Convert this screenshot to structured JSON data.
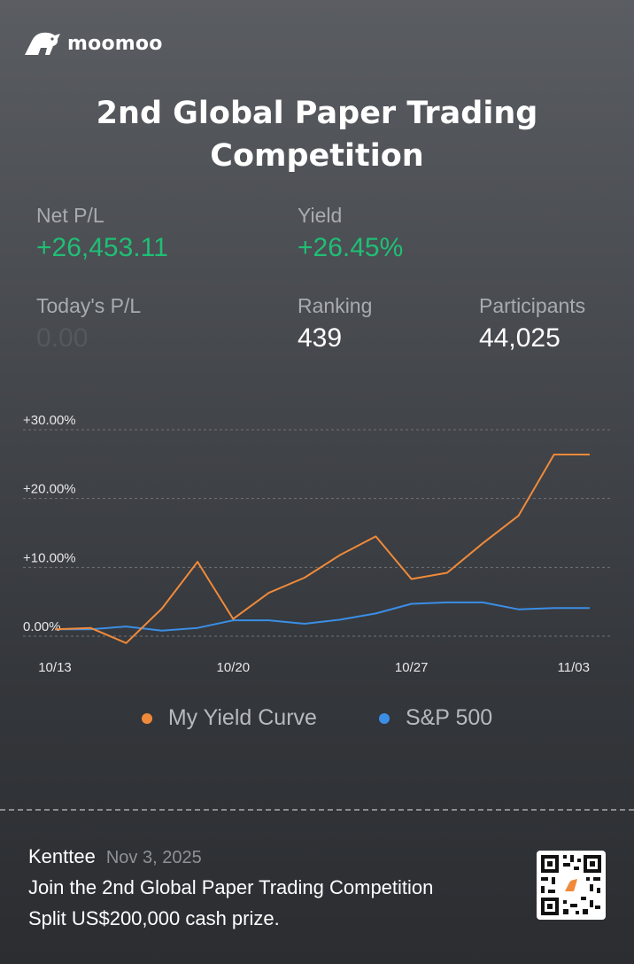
{
  "brand": {
    "name": "moomoo",
    "logo_icon": "bull-icon"
  },
  "title": {
    "line1": "2nd Global Paper Trading",
    "line2": "Competition"
  },
  "stats": {
    "net_pl": {
      "label": "Net P/L",
      "value": "+26,453.11"
    },
    "yield": {
      "label": "Yield",
      "value": "+26.45%"
    },
    "todays_pl": {
      "label": "Today's P/L",
      "value": "0.00"
    },
    "ranking": {
      "label": "Ranking",
      "value": "439"
    },
    "participants": {
      "label": "Participants",
      "value": "44,025"
    }
  },
  "colors": {
    "positive": "#1fbf75",
    "my_curve": "#f08a3a",
    "sp500": "#3b8ee6"
  },
  "chart_data": {
    "type": "line",
    "x": [
      "10/13",
      "10/14",
      "10/15",
      "10/16",
      "10/17",
      "10/20",
      "10/21",
      "10/22",
      "10/23",
      "10/24",
      "10/27",
      "10/28",
      "10/29",
      "10/30",
      "10/31",
      "11/03"
    ],
    "xticks": [
      "10/13",
      "10/20",
      "10/27",
      "11/03"
    ],
    "yticks": [
      "+30.00%",
      "+20.00%",
      "+10.00%",
      "0.00%"
    ],
    "ylim": [
      0,
      30
    ],
    "grid": true,
    "legend_position": "bottom",
    "series": [
      {
        "name": "My Yield Curve",
        "color": "#f08a3a",
        "values": [
          1.0,
          1.2,
          -1.0,
          4.0,
          10.8,
          2.5,
          6.3,
          8.5,
          11.8,
          14.5,
          8.3,
          9.2,
          13.5,
          17.5,
          26.4,
          26.4
        ]
      },
      {
        "name": "S&P 500",
        "color": "#3b8ee6",
        "values": [
          1.0,
          1.0,
          1.4,
          0.8,
          1.2,
          2.3,
          2.3,
          1.8,
          2.4,
          3.3,
          4.7,
          4.9,
          4.9,
          3.9,
          4.1,
          4.1
        ]
      }
    ]
  },
  "footer": {
    "username": "Kenttee",
    "date": "Nov 3, 2025",
    "line1": "Join the 2nd Global Paper Trading Competition",
    "line2": "Split US$200,000 cash  prize.",
    "qr_icon": "qr-code-icon"
  }
}
